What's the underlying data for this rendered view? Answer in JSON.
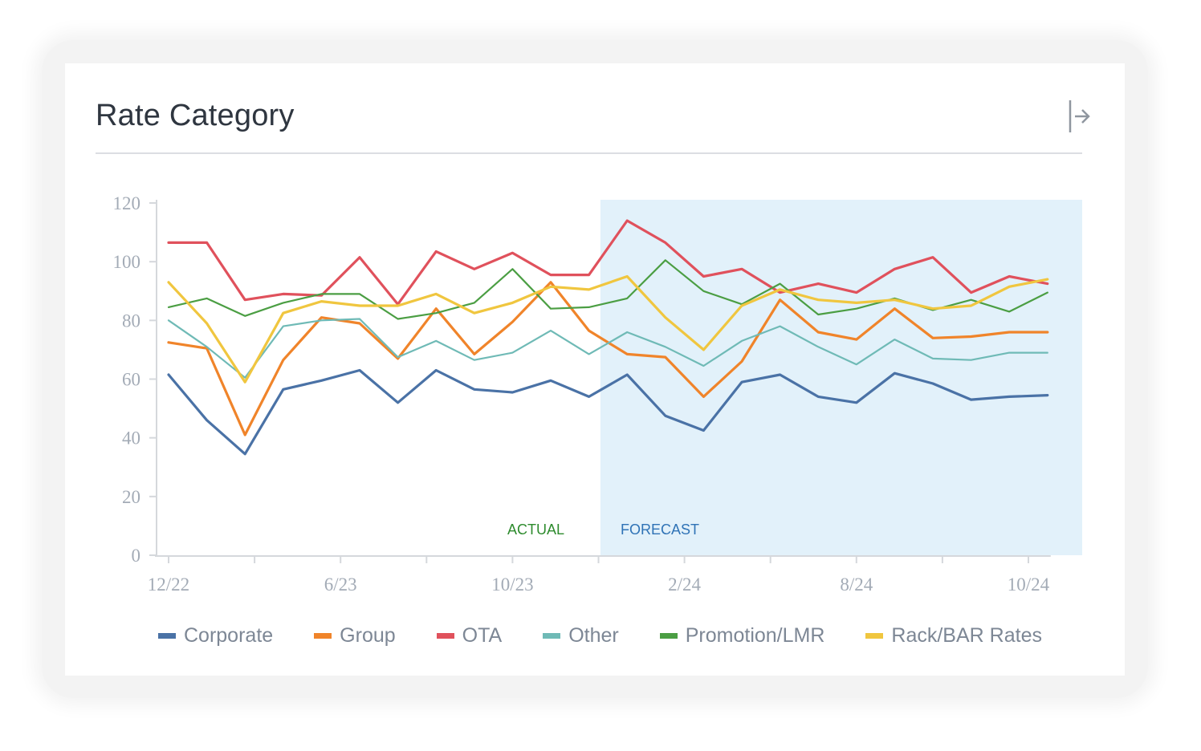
{
  "card": {
    "title": "Rate Category"
  },
  "icons": {
    "expand": "expand-right-icon"
  },
  "chart_data": {
    "type": "line",
    "title": "Rate Category",
    "xlabel": "",
    "ylabel": "",
    "ylim": [
      0,
      120
    ],
    "yticks": [
      0,
      20,
      40,
      60,
      80,
      100,
      120
    ],
    "xtick_labels": [
      {
        "index": 0,
        "label": "12/22"
      },
      {
        "index": 4.5,
        "label": "6/23"
      },
      {
        "index": 9,
        "label": "10/23"
      },
      {
        "index": 13.5,
        "label": "2/24"
      },
      {
        "index": 18,
        "label": "8/24"
      },
      {
        "index": 22.5,
        "label": "10/24"
      }
    ],
    "x_count": 24,
    "grid": false,
    "legend_position": "bottom",
    "regions": {
      "actual_label": "ACTUAL",
      "forecast_label": "FORECAST",
      "actual_color": "#2e8b2e",
      "forecast_color": "#2f73b6",
      "forecast_fill": "#e2f1fa",
      "forecast_start_index": 11.3
    },
    "series": [
      {
        "name": "Corporate",
        "color": "#4a72a6",
        "values": [
          61.5,
          46,
          34.5,
          56.5,
          59.5,
          63,
          52,
          63,
          56.5,
          55.5,
          59.5,
          54,
          61.5,
          47.5,
          42.5,
          59,
          61.5,
          54,
          52,
          62,
          58.5,
          53,
          54,
          54.5
        ]
      },
      {
        "name": "Group",
        "color": "#f0842a",
        "values": [
          72.5,
          70.5,
          41,
          66.5,
          81,
          79,
          67,
          84,
          68.5,
          79.5,
          93,
          76.5,
          68.5,
          67.5,
          54,
          66,
          87,
          76,
          73.5,
          84,
          74,
          74.5,
          76,
          76
        ]
      },
      {
        "name": "OTA",
        "color": "#e0515c",
        "values": [
          106.5,
          106.5,
          87,
          89,
          88.5,
          101.5,
          85.5,
          103.5,
          97.5,
          103,
          95.5,
          95.5,
          114,
          106.5,
          95,
          97.5,
          89.5,
          92.5,
          89.5,
          97.5,
          101.5,
          89.5,
          95,
          92.5
        ]
      },
      {
        "name": "Other",
        "color": "#6fbab6",
        "values": [
          80,
          71,
          60.5,
          78,
          80,
          80.5,
          67.5,
          73,
          66.5,
          69,
          76.5,
          68.5,
          76,
          71,
          64.5,
          73,
          78,
          71,
          65,
          73.5,
          67,
          66.5,
          69,
          69
        ]
      },
      {
        "name": "Promotion/LMR",
        "color": "#4b9e43",
        "values": [
          84.5,
          87.5,
          81.5,
          86,
          89,
          89,
          80.5,
          82.5,
          86,
          97.5,
          84,
          84.5,
          87.5,
          100.5,
          90,
          85.5,
          92.5,
          82,
          84,
          87.5,
          83.5,
          87,
          83,
          89.5
        ]
      },
      {
        "name": "Rack/BAR Rates",
        "color": "#f0c63f",
        "values": [
          93,
          79,
          59,
          82.5,
          86.5,
          85,
          85,
          89,
          82.5,
          86,
          91.5,
          90.5,
          95,
          81,
          70,
          85,
          90.5,
          87,
          86,
          87,
          84,
          85,
          91.5,
          94
        ]
      }
    ]
  }
}
